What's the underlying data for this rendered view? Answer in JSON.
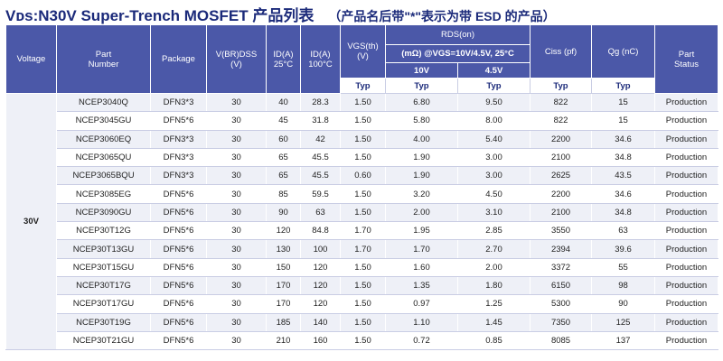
{
  "title": {
    "main": "Vᴅs:N30V Super-Trench MOSFET 产品列表",
    "note": "（产品名后带\"*\"表示为带 ESD 的产品）"
  },
  "header": {
    "voltage": "Voltage",
    "part_number": "Part\nNumber",
    "package": "Package",
    "vbr": "V(BR)DSS\n(V)",
    "id25": "ID(A)\n25°C",
    "id100": "ID(A)\n100°C",
    "vgs": "VGS(th)\n(V)",
    "rds": "RDS(on)",
    "rds_sub": "(mΩ) @VGS=10V/4.5V, 25°C",
    "v10": "10V",
    "v45": "4.5V",
    "ciss": "Ciss  (pf)",
    "qg": "Qg  (nC)",
    "status": "Part\nStatus",
    "typ": "Typ"
  },
  "voltage_group": "30V",
  "rows": [
    {
      "part": "NCEP3040Q",
      "package": "DFN3*3",
      "vbr": "30",
      "id25": "40",
      "id100": "28.3",
      "vgs": "1.50",
      "r10": "6.80",
      "r45": "9.50",
      "ciss": "822",
      "qg": "15",
      "status": "Production"
    },
    {
      "part": "NCEP3045GU",
      "package": "DFN5*6",
      "vbr": "30",
      "id25": "45",
      "id100": "31.8",
      "vgs": "1.50",
      "r10": "5.80",
      "r45": "8.00",
      "ciss": "822",
      "qg": "15",
      "status": "Production"
    },
    {
      "part": "NCEP3060EQ",
      "package": "DFN3*3",
      "vbr": "30",
      "id25": "60",
      "id100": "42",
      "vgs": "1.50",
      "r10": "4.00",
      "r45": "5.40",
      "ciss": "2200",
      "qg": "34.6",
      "status": "Production"
    },
    {
      "part": "NCEP3065QU",
      "package": "DFN3*3",
      "vbr": "30",
      "id25": "65",
      "id100": "45.5",
      "vgs": "1.50",
      "r10": "1.90",
      "r45": "3.00",
      "ciss": "2100",
      "qg": "34.8",
      "status": "Production"
    },
    {
      "part": "NCEP3065BQU",
      "package": "DFN3*3",
      "vbr": "30",
      "id25": "65",
      "id100": "45.5",
      "vgs": "0.60",
      "r10": "1.90",
      "r45": "3.00",
      "ciss": "2625",
      "qg": "43.5",
      "status": "Production"
    },
    {
      "part": "NCEP3085EG",
      "package": "DFN5*6",
      "vbr": "30",
      "id25": "85",
      "id100": "59.5",
      "vgs": "1.50",
      "r10": "3.20",
      "r45": "4.50",
      "ciss": "2200",
      "qg": "34.6",
      "status": "Production"
    },
    {
      "part": "NCEP3090GU",
      "package": "DFN5*6",
      "vbr": "30",
      "id25": "90",
      "id100": "63",
      "vgs": "1.50",
      "r10": "2.00",
      "r45": "3.10",
      "ciss": "2100",
      "qg": "34.8",
      "status": "Production"
    },
    {
      "part": "NCEP30T12G",
      "package": "DFN5*6",
      "vbr": "30",
      "id25": "120",
      "id100": "84.8",
      "vgs": "1.70",
      "r10": "1.95",
      "r45": "2.85",
      "ciss": "3550",
      "qg": "63",
      "status": "Production"
    },
    {
      "part": "NCEP30T13GU",
      "package": "DFN5*6",
      "vbr": "30",
      "id25": "130",
      "id100": "100",
      "vgs": "1.70",
      "r10": "1.70",
      "r45": "2.70",
      "ciss": "2394",
      "qg": "39.6",
      "status": "Production"
    },
    {
      "part": "NCEP30T15GU",
      "package": "DFN5*6",
      "vbr": "30",
      "id25": "150",
      "id100": "120",
      "vgs": "1.50",
      "r10": "1.60",
      "r45": "2.00",
      "ciss": "3372",
      "qg": "55",
      "status": "Production"
    },
    {
      "part": "NCEP30T17G",
      "package": "DFN5*6",
      "vbr": "30",
      "id25": "170",
      "id100": "120",
      "vgs": "1.50",
      "r10": "1.35",
      "r45": "1.80",
      "ciss": "6150",
      "qg": "98",
      "status": "Production"
    },
    {
      "part": "NCEP30T17GU",
      "package": "DFN5*6",
      "vbr": "30",
      "id25": "170",
      "id100": "120",
      "vgs": "1.50",
      "r10": "0.97",
      "r45": "1.25",
      "ciss": "5300",
      "qg": "90",
      "status": "Production"
    },
    {
      "part": "NCEP30T19G",
      "package": "DFN5*6",
      "vbr": "30",
      "id25": "185",
      "id100": "140",
      "vgs": "1.50",
      "r10": "1.10",
      "r45": "1.45",
      "ciss": "7350",
      "qg": "125",
      "status": "Production"
    },
    {
      "part": "NCEP30T21GU",
      "package": "DFN5*6",
      "vbr": "30",
      "id25": "210",
      "id100": "160",
      "vgs": "1.50",
      "r10": "0.72",
      "r45": "0.85",
      "ciss": "8085",
      "qg": "137",
      "status": "Production"
    }
  ]
}
